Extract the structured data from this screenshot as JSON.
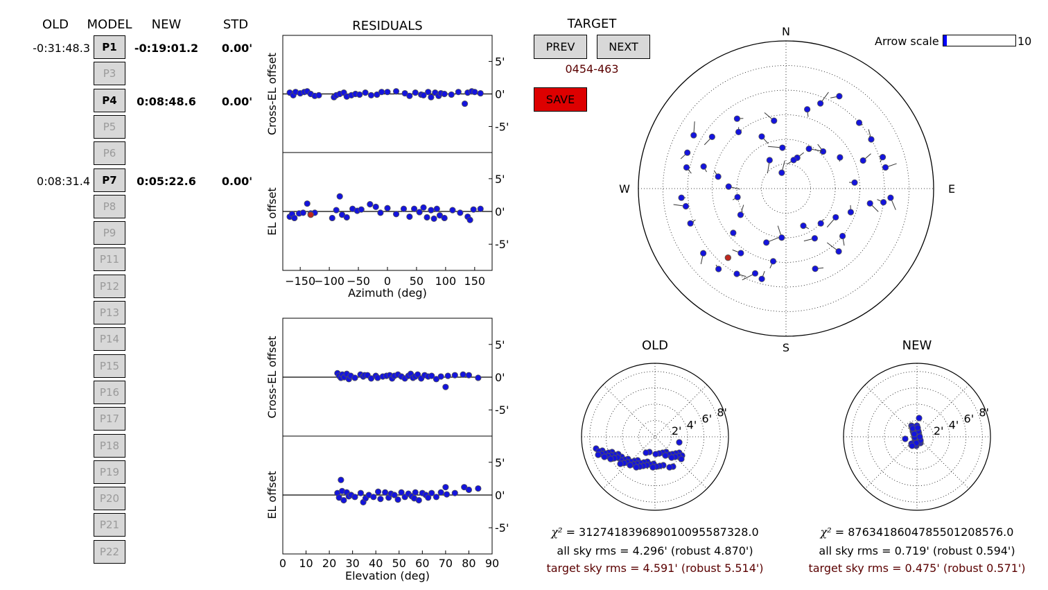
{
  "headers": {
    "old": "OLD",
    "model": "MODEL",
    "new": "NEW",
    "std": "STD",
    "residuals": "RESIDUALS",
    "target": "TARGET"
  },
  "params": [
    {
      "label": "P1",
      "active": true,
      "old": "-0:31:48.3",
      "new": "-0:19:01.2",
      "std": "0.00'"
    },
    {
      "label": "P3",
      "active": false,
      "old": "",
      "new": "",
      "std": ""
    },
    {
      "label": "P4",
      "active": true,
      "old": "",
      "new": "0:08:48.6",
      "std": "0.00'"
    },
    {
      "label": "P5",
      "active": false,
      "old": "",
      "new": "",
      "std": ""
    },
    {
      "label": "P6",
      "active": false,
      "old": "",
      "new": "",
      "std": ""
    },
    {
      "label": "P7",
      "active": true,
      "old": "0:08:31.4",
      "new": "0:05:22.6",
      "std": "0.00'"
    },
    {
      "label": "P8",
      "active": false,
      "old": "",
      "new": "",
      "std": ""
    },
    {
      "label": "P9",
      "active": false,
      "old": "",
      "new": "",
      "std": ""
    },
    {
      "label": "P11",
      "active": false,
      "old": "",
      "new": "",
      "std": ""
    },
    {
      "label": "P12",
      "active": false,
      "old": "",
      "new": "",
      "std": ""
    },
    {
      "label": "P13",
      "active": false,
      "old": "",
      "new": "",
      "std": ""
    },
    {
      "label": "P14",
      "active": false,
      "old": "",
      "new": "",
      "std": ""
    },
    {
      "label": "P15",
      "active": false,
      "old": "",
      "new": "",
      "std": ""
    },
    {
      "label": "P16",
      "active": false,
      "old": "",
      "new": "",
      "std": ""
    },
    {
      "label": "P17",
      "active": false,
      "old": "",
      "new": "",
      "std": ""
    },
    {
      "label": "P18",
      "active": false,
      "old": "",
      "new": "",
      "std": ""
    },
    {
      "label": "P19",
      "active": false,
      "old": "",
      "new": "",
      "std": ""
    },
    {
      "label": "P20",
      "active": false,
      "old": "",
      "new": "",
      "std": ""
    },
    {
      "label": "P21",
      "active": false,
      "old": "",
      "new": "",
      "std": ""
    },
    {
      "label": "P22",
      "active": false,
      "old": "",
      "new": "",
      "std": ""
    }
  ],
  "target": {
    "prev_label": "PREV",
    "next_label": "NEXT",
    "name": "0454-463",
    "save_label": "SAVE",
    "save_color": "#dd0000",
    "name_color": "#5a0000"
  },
  "arrow_scale": {
    "label": "Arrow scale",
    "max": "10",
    "value": 0.05,
    "fill_color": "#0000ff"
  },
  "colors": {
    "point": "#1414dc",
    "point_edge": "#555555",
    "target_point": "#c0281e",
    "target_text": "#5a0000"
  },
  "residual_plots": {
    "cross_el_label": "Cross-EL offset",
    "el_label": "EL offset",
    "y_ticks": [
      "5'",
      "0'",
      "-5'"
    ],
    "az_xlabel": "Azimuth (deg)",
    "az_ticks": [
      "−150",
      "−100",
      "−50",
      "0",
      "50",
      "100",
      "150"
    ],
    "el_xlabel": "Elevation (deg)",
    "el_ticks": [
      "0",
      "10",
      "20",
      "30",
      "40",
      "50",
      "60",
      "70",
      "80",
      "90"
    ]
  },
  "chart_data": [
    {
      "type": "scatter",
      "name": "cross_el_vs_az",
      "xlabel": "Azimuth (deg)",
      "ylabel": "Cross-EL offset",
      "xlim": [
        -180,
        180
      ],
      "ylim": [
        -9,
        9
      ],
      "x": [
        -168,
        -162,
        -158,
        -150,
        -143,
        -138,
        -132,
        -125,
        -118,
        -92,
        -88,
        -82,
        -75,
        -70,
        -62,
        -55,
        -48,
        -38,
        -28,
        -18,
        -10,
        0,
        15,
        30,
        38,
        48,
        58,
        62,
        70,
        75,
        82,
        88,
        92,
        98,
        110,
        122,
        133,
        138,
        145,
        150,
        160
      ],
      "y": [
        0.2,
        -0.2,
        0.3,
        0.1,
        0.3,
        0.4,
        0,
        -0.3,
        -0.2,
        -0.5,
        -0.2,
        0,
        0.2,
        -0.4,
        -0.2,
        0,
        -0.1,
        0.2,
        -0.2,
        -0.1,
        0.3,
        0.3,
        0.4,
        0.1,
        -0.3,
        0.2,
        -0.1,
        -0.2,
        0.3,
        -0.5,
        0.2,
        -0.3,
        0.1,
        0,
        -0.1,
        0.3,
        -1.5,
        0.2,
        0.4,
        0.3,
        0.1
      ]
    },
    {
      "type": "scatter",
      "name": "el_vs_az",
      "xlabel": "Azimuth (deg)",
      "ylabel": "EL offset",
      "xlim": [
        -180,
        180
      ],
      "ylim": [
        -9,
        9
      ],
      "x": [
        -168,
        -164,
        -160,
        -152,
        -145,
        -138,
        -132,
        -125,
        -95,
        -88,
        -82,
        -78,
        -70,
        -60,
        -52,
        -45,
        -30,
        -20,
        -12,
        0,
        15,
        28,
        38,
        46,
        55,
        62,
        68,
        75,
        80,
        85,
        90,
        98,
        112,
        125,
        138,
        142,
        148,
        160
      ],
      "y": [
        -0.8,
        -0.4,
        -1.0,
        -0.3,
        -0.2,
        1.2,
        -0.3,
        -0.2,
        -1.0,
        0.2,
        2.3,
        -0.5,
        -0.9,
        0.4,
        0.1,
        0.3,
        1.1,
        0.7,
        -0.2,
        0.5,
        -0.4,
        0.4,
        -0.8,
        0.4,
        -0.1,
        0.6,
        -0.9,
        0.2,
        -1.1,
        0.4,
        -0.6,
        -1.0,
        0.2,
        -0.2,
        -0.8,
        -1.3,
        0.3,
        0.4
      ]
    },
    {
      "type": "scatter",
      "name": "target_el_vs_az",
      "x": [
        -132
      ],
      "y": [
        -0.5
      ]
    },
    {
      "type": "scatter",
      "name": "cross_el_vs_el",
      "xlabel": "Elevation (deg)",
      "ylabel": "Cross-EL offset",
      "xlim": [
        0,
        90
      ],
      "ylim": [
        -9,
        9
      ],
      "x": [
        23.5,
        24.2,
        25,
        25.6,
        26.4,
        27.5,
        28.4,
        29.2,
        31,
        33.4,
        34.6,
        35.2,
        36.4,
        38,
        40,
        40.8,
        43,
        44.6,
        46,
        47,
        48,
        49.5,
        51,
        52.5,
        54,
        55,
        56,
        57,
        58,
        59.5,
        61,
        62.5,
        64,
        66,
        68,
        70,
        71,
        74,
        77.5,
        80,
        84
      ],
      "y": [
        0.6,
        0.2,
        -0.1,
        0.4,
        0,
        0.5,
        -0.3,
        0.2,
        -0.1,
        0.4,
        0.1,
        0.3,
        0.3,
        -0.2,
        0.2,
        -0.1,
        0.1,
        0.2,
        0.3,
        -0.2,
        0.2,
        0.4,
        0.1,
        -0.2,
        0.2,
        0.5,
        -0.1,
        0.1,
        0.4,
        -0.2,
        0.3,
        0.1,
        0.2,
        -0.3,
        0.1,
        -1.5,
        0.2,
        0.3,
        0.4,
        0.3,
        -0.1
      ]
    },
    {
      "type": "scatter",
      "name": "el_vs_el",
      "xlabel": "Elevation (deg)",
      "ylabel": "EL offset",
      "xlim": [
        0,
        90
      ],
      "ylim": [
        -9,
        9
      ],
      "x": [
        23.5,
        24.2,
        25,
        25.5,
        26.2,
        27.5,
        28.4,
        29.4,
        31,
        33.5,
        34.6,
        35.6,
        37,
        39,
        41,
        42,
        44,
        45.5,
        46.5,
        48,
        49.5,
        51,
        52.5,
        54,
        55.5,
        56.5,
        57,
        58.5,
        60,
        61.5,
        62.5,
        64,
        66,
        68,
        70,
        70.5,
        74,
        78,
        80,
        84
      ],
      "y": [
        0.3,
        -0.4,
        2.3,
        0.6,
        -0.8,
        0.4,
        -0.2,
        0,
        -0.3,
        0.3,
        -1.1,
        -0.5,
        0,
        -0.3,
        0.5,
        -0.6,
        0.4,
        -0.4,
        0.2,
        0,
        -0.7,
        0.4,
        -0.3,
        0.2,
        -0.2,
        -0.5,
        0.4,
        -0.8,
        0.3,
        0,
        -0.4,
        0.3,
        -0.3,
        0.4,
        1.2,
        0.1,
        0.3,
        1.2,
        0.8,
        1.0
      ]
    },
    {
      "type": "scatter",
      "name": "sky_pointing",
      "points": [
        {
          "az": -95,
          "el": 26
        },
        {
          "az": -70,
          "el": 26
        },
        {
          "az": -60,
          "el": 25
        },
        {
          "az": -78,
          "el": 28
        },
        {
          "az": -100,
          "el": 28
        },
        {
          "az": -110,
          "el": 28
        },
        {
          "az": -128,
          "el": 26
        },
        {
          "az": -140,
          "el": 26
        },
        {
          "az": -150,
          "el": 30
        },
        {
          "az": -160,
          "el": 35
        },
        {
          "az": -165,
          "el": 33
        },
        {
          "az": 95,
          "el": 26
        },
        {
          "az": 98,
          "el": 30
        },
        {
          "az": 78,
          "el": 28
        },
        {
          "az": 72,
          "el": 28
        },
        {
          "az": 60,
          "el": 30
        },
        {
          "az": 48,
          "el": 30
        },
        {
          "az": 30,
          "el": 25
        },
        {
          "az": 22,
          "el": 34
        },
        {
          "az": 15,
          "el": 40
        },
        {
          "az": -10,
          "el": 48
        },
        {
          "az": -35,
          "el": 38
        },
        {
          "az": -55,
          "el": 35
        },
        {
          "az": -40,
          "el": 45
        },
        {
          "az": -25,
          "el": 55
        },
        {
          "az": -5,
          "el": 65
        },
        {
          "az": 20,
          "el": 70
        },
        {
          "az": -30,
          "el": 70
        },
        {
          "az": -80,
          "el": 48
        },
        {
          "az": -88,
          "el": 55
        },
        {
          "az": -100,
          "el": 60
        },
        {
          "az": -120,
          "el": 58
        },
        {
          "az": -130,
          "el": 48
        },
        {
          "az": -145,
          "el": 42
        },
        {
          "az": -160,
          "el": 55
        },
        {
          "az": -170,
          "el": 45
        },
        {
          "az": -175,
          "el": 60
        },
        {
          "az": 155,
          "el": 65
        },
        {
          "az": 150,
          "el": 55
        },
        {
          "az": 135,
          "el": 60
        },
        {
          "az": 130,
          "el": 45
        },
        {
          "az": 140,
          "el": 40
        },
        {
          "az": 160,
          "el": 38
        },
        {
          "az": 120,
          "el": 55
        },
        {
          "az": 110,
          "el": 48
        },
        {
          "az": 100,
          "el": 38
        },
        {
          "az": 85,
          "el": 48
        },
        {
          "az": 70,
          "el": 40
        },
        {
          "az": 60,
          "el": 52
        },
        {
          "az": 45,
          "el": 58
        },
        {
          "az": 30,
          "el": 62
        },
        {
          "az": 15,
          "el": 72
        },
        {
          "az": -15,
          "el": 80
        },
        {
          "az": -75,
          "el": 38
        }
      ],
      "target": [
        {
          "az": -140,
          "el": 35
        }
      ]
    },
    {
      "type": "scatter",
      "name": "old_residual_polar",
      "rlabel_ticks": [
        "2'",
        "4'",
        "6'",
        "8'"
      ],
      "rlim": [
        0,
        9
      ]
    },
    {
      "type": "scatter",
      "name": "new_residual_polar",
      "rlabel_ticks": [
        "2'",
        "4'",
        "6'",
        "8'"
      ],
      "rlim": [
        0,
        9
      ]
    }
  ],
  "sky": {
    "n": "N",
    "s": "S",
    "e": "E",
    "w": "W"
  },
  "old_panel": {
    "title": "OLD",
    "chi2_symbol": "χ²",
    "chi2": "=  3127418396890100955873​28.0",
    "rms": "all sky rms = 4.296' (robust 4.870')",
    "target_rms": "target sky rms = 4.591' (robust 5.514')"
  },
  "new_panel": {
    "title": "NEW",
    "chi2_symbol": "χ²",
    "chi2": "=  876341860478550120857​6.0",
    "rms": "all sky rms = 0.719' (robust 0.594')",
    "target_rms": "target sky rms = 0.475' (robust 0.571')"
  }
}
